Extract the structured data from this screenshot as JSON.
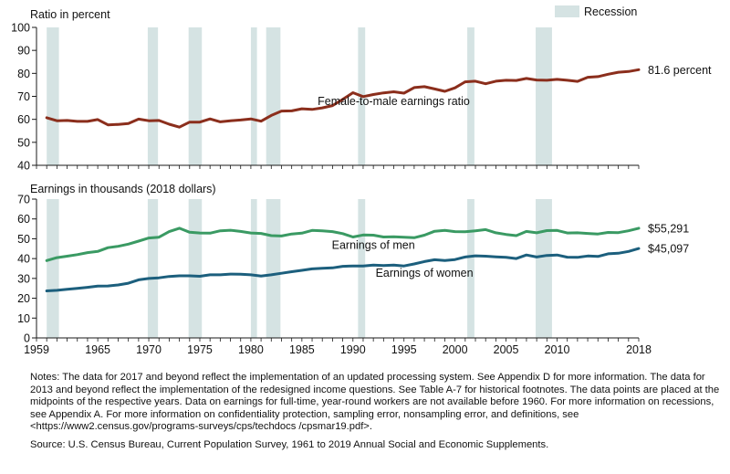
{
  "chart_data": [
    {
      "type": "line",
      "title": "Ratio in percent",
      "ylim": [
        40,
        100
      ],
      "yticks": [
        40,
        50,
        60,
        70,
        80,
        90,
        100
      ],
      "xlim": [
        1959,
        2018
      ],
      "series": [
        {
          "name": "Female-to-male earnings ratio",
          "color": "#8b2e1c",
          "x": [
            1960,
            1961,
            1962,
            1963,
            1964,
            1965,
            1966,
            1967,
            1968,
            1969,
            1970,
            1971,
            1972,
            1973,
            1974,
            1975,
            1976,
            1977,
            1978,
            1979,
            1980,
            1981,
            1982,
            1983,
            1984,
            1985,
            1986,
            1987,
            1988,
            1989,
            1990,
            1991,
            1992,
            1993,
            1994,
            1995,
            1996,
            1997,
            1998,
            1999,
            2000,
            2001,
            2002,
            2003,
            2004,
            2005,
            2006,
            2007,
            2008,
            2009,
            2010,
            2011,
            2012,
            2013,
            2014,
            2015,
            2016,
            2017,
            2018
          ],
          "values": [
            60.7,
            59.4,
            59.5,
            59.1,
            59.1,
            59.9,
            57.6,
            57.8,
            58.2,
            60.1,
            59.4,
            59.5,
            57.9,
            56.6,
            58.8,
            58.8,
            60.2,
            58.9,
            59.4,
            59.7,
            60.2,
            59.2,
            61.7,
            63.6,
            63.7,
            64.6,
            64.3,
            65.0,
            66.0,
            68.7,
            71.6,
            69.9,
            70.8,
            71.5,
            72.0,
            71.4,
            73.8,
            74.2,
            73.2,
            72.2,
            73.7,
            76.3,
            76.6,
            75.5,
            76.6,
            77.0,
            76.9,
            77.8,
            77.1,
            77.0,
            77.4,
            77.0,
            76.5,
            78.3,
            78.6,
            79.6,
            80.5,
            80.8,
            81.6
          ]
        }
      ],
      "annotations": [
        {
          "text": "Female-to-male earnings ratio",
          "x": 1994,
          "y": 68
        },
        {
          "text": "81.6 percent",
          "x": 2018,
          "y": 81.6
        }
      ]
    },
    {
      "type": "line",
      "title": "Earnings in thousands (2018 dollars)",
      "ylim": [
        0,
        70
      ],
      "yticks": [
        0,
        10,
        20,
        30,
        40,
        50,
        60,
        70
      ],
      "xlim": [
        1959,
        2018
      ],
      "xticks": [
        1959,
        1965,
        1970,
        1975,
        1980,
        1985,
        1990,
        1995,
        2000,
        2005,
        2010,
        2018
      ],
      "series": [
        {
          "name": "Earnings of men",
          "color": "#3a9a63",
          "x": [
            1960,
            1961,
            1962,
            1963,
            1964,
            1965,
            1966,
            1967,
            1968,
            1969,
            1970,
            1971,
            1972,
            1973,
            1974,
            1975,
            1976,
            1977,
            1978,
            1979,
            1980,
            1981,
            1982,
            1983,
            1984,
            1985,
            1986,
            1987,
            1988,
            1989,
            1990,
            1991,
            1992,
            1993,
            1994,
            1995,
            1996,
            1997,
            1998,
            1999,
            2000,
            2001,
            2002,
            2003,
            2004,
            2005,
            2006,
            2007,
            2008,
            2009,
            2010,
            2011,
            2012,
            2013,
            2014,
            2015,
            2016,
            2017,
            2018
          ],
          "values": [
            39.0,
            40.5,
            41.2,
            42.0,
            43.0,
            43.6,
            45.5,
            46.2,
            47.3,
            48.8,
            50.4,
            50.8,
            53.6,
            55.3,
            53.3,
            52.9,
            52.8,
            54.0,
            54.3,
            53.7,
            52.9,
            52.7,
            51.6,
            51.4,
            52.4,
            52.8,
            54.2,
            54.0,
            53.6,
            52.6,
            50.9,
            51.9,
            51.8,
            50.9,
            51.0,
            50.8,
            50.5,
            51.8,
            53.8,
            54.2,
            53.6,
            53.5,
            54.0,
            54.6,
            53.0,
            52.2,
            51.6,
            53.7,
            53.0,
            54.1,
            54.2,
            52.9,
            53.0,
            52.7,
            52.4,
            53.2,
            53.1,
            54.0,
            55.3
          ]
        },
        {
          "name": "Earnings of women",
          "color": "#1c5f7d",
          "x": [
            1960,
            1961,
            1962,
            1963,
            1964,
            1965,
            1966,
            1967,
            1968,
            1969,
            1970,
            1971,
            1972,
            1973,
            1974,
            1975,
            1976,
            1977,
            1978,
            1979,
            1980,
            1981,
            1982,
            1983,
            1984,
            1985,
            1986,
            1987,
            1988,
            1989,
            1990,
            1991,
            1992,
            1993,
            1994,
            1995,
            1996,
            1997,
            1998,
            1999,
            2000,
            2001,
            2002,
            2003,
            2004,
            2005,
            2006,
            2007,
            2008,
            2009,
            2010,
            2011,
            2012,
            2013,
            2014,
            2015,
            2016,
            2017,
            2018
          ],
          "values": [
            23.7,
            24.0,
            24.5,
            25.0,
            25.5,
            26.1,
            26.2,
            26.7,
            27.6,
            29.3,
            30.0,
            30.3,
            31.0,
            31.3,
            31.3,
            31.1,
            31.8,
            31.8,
            32.2,
            32.1,
            31.8,
            31.2,
            31.8,
            32.6,
            33.4,
            34.1,
            34.8,
            35.1,
            35.3,
            36.1,
            36.3,
            36.3,
            36.7,
            36.5,
            36.7,
            36.3,
            37.3,
            38.5,
            39.4,
            39.0,
            39.5,
            40.8,
            41.4,
            41.2,
            40.9,
            40.6,
            40.0,
            41.8,
            40.8,
            41.6,
            41.8,
            40.7,
            40.6,
            41.3,
            41.1,
            42.4,
            42.7,
            43.6,
            45.1
          ]
        }
      ],
      "annotations": [
        {
          "text": "Earnings of men",
          "x": 1992,
          "y": 47
        },
        {
          "text": "Earnings of women",
          "x": 1997,
          "y": 33
        },
        {
          "text": "$55,291",
          "x": 2018,
          "y": 55.3
        },
        {
          "text": "$45,097",
          "x": 2018,
          "y": 45.1
        }
      ]
    }
  ],
  "recessions": [
    [
      1960.0,
      1961.2
    ],
    [
      1969.9,
      1970.9
    ],
    [
      1973.9,
      1975.2
    ],
    [
      1980.0,
      1980.6
    ],
    [
      1981.5,
      1982.9
    ],
    [
      1990.5,
      1991.2
    ],
    [
      2001.2,
      2001.9
    ],
    [
      2007.9,
      2009.5
    ]
  ],
  "recession_color": "#d5e3e3",
  "legend": {
    "label": "Recession",
    "position": "top-right"
  },
  "axis_color": "#1a1a1a",
  "notes": "Notes: The data for 2017 and beyond reflect the implementation of an updated processing system. See Appendix D for more information. The data for 2013 and beyond reflect the implementation of the redesigned income questions. See Table A-7 for historical footnotes. The data points are placed at the midpoints of the respective years. Data on earnings for full-time, year-round workers are not available before 1960. For more information on recessions, see Appendix A. For more information on confidentiality protection, sampling error, nonsampling error, and definitions, see <https://www2.census.gov/programs-surveys/cps/techdocs /cpsmar19.pdf>.",
  "source": "Source: U.S. Census Bureau, Current Population Survey, 1961 to 2019 Annual Social and Economic Supplements."
}
